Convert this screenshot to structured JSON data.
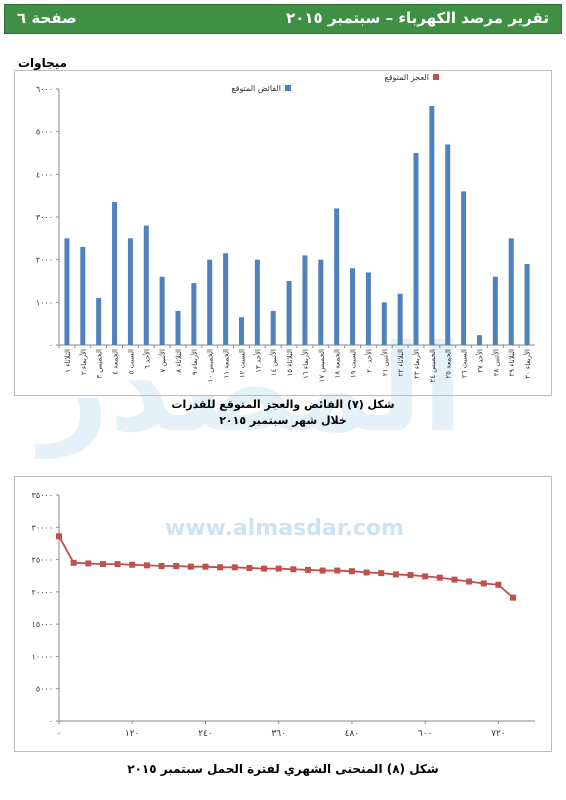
{
  "header": {
    "title": "تقرير مرصد الكهرباء – سبتمبر ٢٠١٥",
    "page": "صفحة ٦",
    "color": "#3f8f45"
  },
  "watermark": {
    "logo_text": "المصدر",
    "url": "www.almasdar.com"
  },
  "chart_data": [
    {
      "type": "bar",
      "unit_label": "ميجاوات",
      "caption_line1": "شكل (٧) الفائض والعجز المتوقع للقدرات",
      "caption_line2": "خلال شهر سبتمبر ٢٠١٥",
      "ylim": [
        0,
        6000
      ],
      "yticks": [
        "٠",
        "١٠٠٠",
        "٢٠٠٠",
        "٣٠٠٠",
        "٤٠٠٠",
        "٥٠٠٠",
        "٦٠٠٠"
      ],
      "legend": "top",
      "grid": false,
      "categories": [
        "الثلاثاء ١",
        "الأربعاء ٢",
        "الخميس ٣",
        "الجمعة ٤",
        "السبت ٥",
        "الأحد ٦",
        "الأثنين ٧",
        "الثلاثاء ٨",
        "الأربعاء ٩",
        "الخميس ١٠",
        "الجمعة ١١",
        "السبت ١٢",
        "الأحد ١٣",
        "الأثنين ١٤",
        "الثلاثاء ١٥",
        "الأربعاء ١٦",
        "الخميس ١٧",
        "الجمعة ١٨",
        "السبت ١٩",
        "الأحد ٢٠",
        "الأثنين ٢١",
        "الثلاثاء ٢٢",
        "الأربعاء ٢٣",
        "الخميس ٢٤",
        "الجمعة ٢٥",
        "السبت ٢٦",
        "الأحد ٢٧",
        "الأثنين ٢٨",
        "الثلاثاء ٢٩",
        "الأربعاء ٣٠"
      ],
      "series": [
        {
          "name": "الفائض المتوقع",
          "color": "#4f81bd",
          "values": [
            2500,
            2300,
            1100,
            3350,
            2500,
            2800,
            1600,
            800,
            1450,
            2000,
            2150,
            650,
            2000,
            800,
            1500,
            2100,
            2000,
            3200,
            1800,
            1700,
            1000,
            1200,
            4500,
            5600,
            4700,
            3600,
            230,
            1600,
            2500,
            1900
          ]
        },
        {
          "name": "العجز المتوقع",
          "color": "#c0504d",
          "values": [
            0,
            0,
            0,
            0,
            0,
            0,
            0,
            0,
            0,
            0,
            0,
            0,
            0,
            0,
            0,
            0,
            0,
            0,
            0,
            0,
            0,
            0,
            0,
            0,
            0,
            0,
            0,
            0,
            0,
            0
          ]
        }
      ]
    },
    {
      "type": "line",
      "caption": "شكل (٨) المنحنى الشهري لفترة الحمل سبتمبر ٢٠١٥",
      "ylim": [
        0,
        35000
      ],
      "yticks": [
        "٠",
        "٥٠٠٠",
        "١٠٠٠٠",
        "١٥٠٠٠",
        "٢٠٠٠٠",
        "٢٥٠٠٠",
        "٣٠٠٠٠",
        "٣٥٠٠٠"
      ],
      "xlim": [
        0,
        780
      ],
      "xticks_values": [
        0,
        120,
        240,
        360,
        480,
        600,
        720
      ],
      "xticks": [
        "٠",
        "١٢٠",
        "٢٤٠",
        "٣٦٠",
        "٤٨٠",
        "٦٠٠",
        "٧٢٠"
      ],
      "grid": false,
      "series": [
        {
          "color": "#c0504d",
          "x": [
            0,
            24,
            48,
            72,
            96,
            120,
            144,
            168,
            192,
            216,
            240,
            264,
            288,
            312,
            336,
            360,
            384,
            408,
            432,
            456,
            480,
            504,
            528,
            552,
            576,
            600,
            624,
            648,
            672,
            696,
            720,
            744
          ],
          "values": [
            28600,
            24500,
            24400,
            24300,
            24300,
            24200,
            24100,
            24000,
            24000,
            23900,
            23900,
            23800,
            23800,
            23700,
            23600,
            23600,
            23500,
            23400,
            23300,
            23300,
            23200,
            23000,
            22900,
            22700,
            22600,
            22400,
            22200,
            21900,
            21600,
            21300,
            21100,
            19100
          ]
        }
      ]
    }
  ]
}
